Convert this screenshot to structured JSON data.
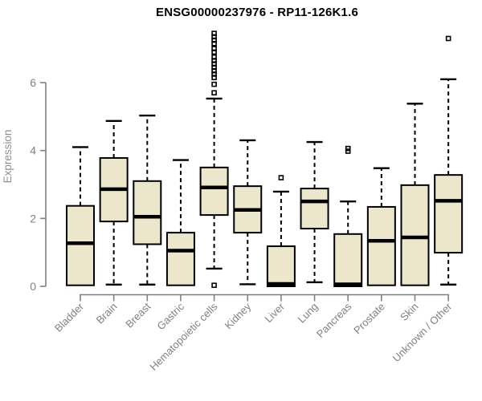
{
  "chart_data": {
    "type": "boxplot",
    "title": "ENSG00000237976 - RP11-126K1.6",
    "xlabel": "",
    "ylabel": "Expression",
    "yticks": [
      0,
      2,
      4,
      6
    ],
    "ylim": [
      0,
      7.6
    ],
    "grid": false,
    "categories": [
      "Bladder",
      "Brain",
      "Breast",
      "Gastric",
      "Hematopoietic cells",
      "Kidney",
      "Liver",
      "Lung",
      "Pancreas",
      "Prostate",
      "Skin",
      "Unknown / Other"
    ],
    "boxes": [
      {
        "label": "Bladder",
        "whisker_low": 0.03,
        "q1": 0.03,
        "median": 1.27,
        "q3": 2.37,
        "whisker_high": 4.1,
        "outliers": []
      },
      {
        "label": "Brain",
        "whisker_low": 0.05,
        "q1": 1.91,
        "median": 2.86,
        "q3": 3.78,
        "whisker_high": 4.87,
        "outliers": []
      },
      {
        "label": "Breast",
        "whisker_low": 0.05,
        "q1": 1.24,
        "median": 2.05,
        "q3": 3.1,
        "whisker_high": 5.03,
        "outliers": []
      },
      {
        "label": "Gastric",
        "whisker_low": 0.03,
        "q1": 0.03,
        "median": 1.05,
        "q3": 1.58,
        "whisker_high": 3.72,
        "outliers": []
      },
      {
        "label": "Hematopoietic cells",
        "whisker_low": 0.52,
        "q1": 2.1,
        "median": 2.91,
        "q3": 3.5,
        "whisker_high": 5.53,
        "outliers": [
          0.03,
          5.7,
          5.95,
          6.15,
          6.25,
          6.35,
          6.45,
          6.55,
          6.65,
          6.75,
          6.9,
          7.0,
          7.15,
          7.25,
          7.35,
          7.45
        ]
      },
      {
        "label": "Kidney",
        "whisker_low": 0.06,
        "q1": 1.58,
        "median": 2.25,
        "q3": 2.95,
        "whisker_high": 4.3,
        "outliers": []
      },
      {
        "label": "Liver",
        "whisker_low": 0.0,
        "q1": 0.0,
        "median": 0.07,
        "q3": 1.18,
        "whisker_high": 2.79,
        "outliers": [
          3.2
        ]
      },
      {
        "label": "Lung",
        "whisker_low": 0.12,
        "q1": 1.7,
        "median": 2.5,
        "q3": 2.88,
        "whisker_high": 4.25,
        "outliers": []
      },
      {
        "label": "Pancreas",
        "whisker_low": 0.0,
        "q1": 0.0,
        "median": 0.06,
        "q3": 1.54,
        "whisker_high": 2.5,
        "outliers": [
          3.98,
          4.06
        ]
      },
      {
        "label": "Prostate",
        "whisker_low": 0.03,
        "q1": 0.03,
        "median": 1.34,
        "q3": 2.34,
        "whisker_high": 3.48,
        "outliers": []
      },
      {
        "label": "Skin",
        "whisker_low": 0.03,
        "q1": 0.03,
        "median": 1.44,
        "q3": 2.98,
        "whisker_high": 5.38,
        "outliers": []
      },
      {
        "label": "Unknown / Other",
        "whisker_low": 0.05,
        "q1": 0.99,
        "median": 2.52,
        "q3": 3.28,
        "whisker_high": 6.1,
        "outliers": [
          7.3
        ]
      }
    ],
    "style": {
      "box_fill": "#ece7cc",
      "line_color": "#000000",
      "axis_color": "#808080",
      "tick_label_color": "#808080",
      "ylabel_color": "#8f8f8f",
      "title_color": "#000000",
      "background": "#ffffff"
    }
  }
}
